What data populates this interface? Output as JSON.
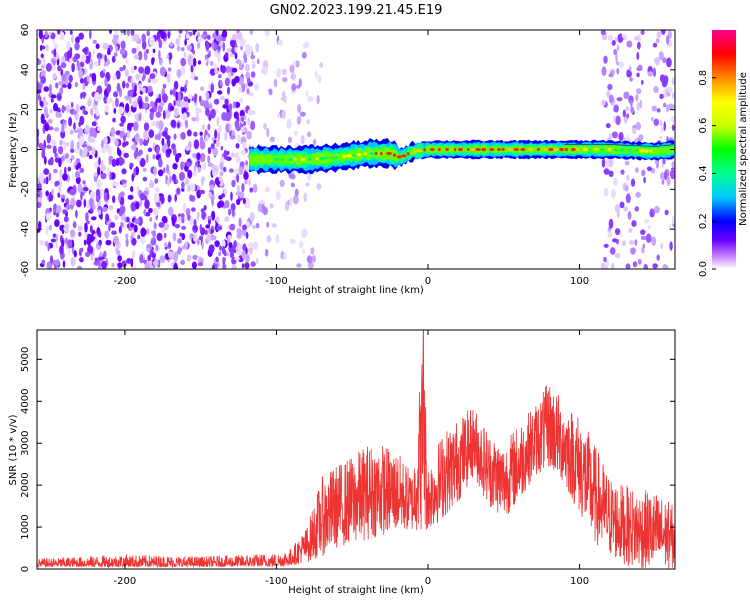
{
  "title": "GN02.2023.199.21.45.E19",
  "chart_data": [
    {
      "type": "heatmap",
      "xlabel": "Height of straight line (km)",
      "ylabel": "Frequency (Hz)",
      "xlim": [
        -258,
        163
      ],
      "ylim": [
        -60,
        60
      ],
      "x_ticks": [
        "-200",
        "-100",
        "0",
        "100"
      ],
      "y_ticks": [
        "60",
        "40",
        "20",
        "0",
        "-20",
        "-40",
        "-60"
      ],
      "colorbar": {
        "label": "Normalized spectral amplitude",
        "range": [
          0,
          1
        ],
        "ticks": [
          "0.0",
          "0.2",
          "0.4",
          "0.6",
          "0.8"
        ],
        "colors": [
          "#ffffff",
          "#cc88ff",
          "#6a00ff",
          "#0000ff",
          "#00c8ff",
          "#00ff90",
          "#00ff00",
          "#ccff00",
          "#ffff00",
          "#ff8800",
          "#ff0000",
          "#ff0090"
        ]
      },
      "noise_regions": [
        {
          "x_from": -258,
          "x_to": -115,
          "density": "dense"
        },
        {
          "x_from": -115,
          "x_to": -70,
          "density": "sparse"
        },
        {
          "x_from": 115,
          "x_to": 163,
          "density": "medium"
        }
      ],
      "signal_band": {
        "x_from": -118,
        "x_to": 163,
        "center_hz": [
          [
            -118,
            -5
          ],
          [
            -100,
            -5
          ],
          [
            -80,
            -5
          ],
          [
            -60,
            -4
          ],
          [
            -40,
            -2
          ],
          [
            -25,
            -2
          ],
          [
            -18,
            -4
          ],
          [
            -10,
            -1
          ],
          [
            0,
            0
          ],
          [
            50,
            0
          ],
          [
            90,
            0
          ],
          [
            120,
            0
          ],
          [
            150,
            -1
          ],
          [
            163,
            0
          ]
        ],
        "peak_amplitude_region": [
          -35,
          100
        ]
      }
    },
    {
      "type": "line",
      "xlabel": "Height of straight line (km)",
      "ylabel": "SNR (10 * v/v)",
      "xlim": [
        -258,
        163
      ],
      "ylim": [
        0,
        5700
      ],
      "x_ticks": [
        "-200",
        "-100",
        "0",
        "100"
      ],
      "y_ticks": [
        "0",
        "1000",
        "2000",
        "3000",
        "4000",
        "5000"
      ],
      "color": "#ee3333",
      "series": [
        {
          "x": [
            -258,
            -200,
            -150,
            -100,
            -90,
            -80,
            -70,
            -60,
            -50,
            -40,
            -30,
            -20,
            -10,
            -3,
            0,
            10,
            20,
            30,
            40,
            50,
            60,
            70,
            80,
            90,
            100,
            110,
            120,
            130,
            140,
            150,
            163
          ],
          "envelope_max": [
            250,
            350,
            300,
            380,
            500,
            1000,
            2200,
            2500,
            2700,
            3000,
            3000,
            2800,
            2300,
            5700,
            2500,
            3300,
            3600,
            3900,
            3300,
            3000,
            3500,
            3900,
            4500,
            4000,
            3700,
            3000,
            2200,
            2000,
            1900,
            1850,
            1500
          ],
          "envelope_min": [
            50,
            50,
            50,
            60,
            80,
            150,
            300,
            500,
            600,
            700,
            800,
            900,
            900,
            900,
            900,
            1200,
            1600,
            2200,
            1500,
            1200,
            1600,
            2200,
            2400,
            2000,
            1300,
            600,
            300,
            100,
            0,
            0,
            0
          ]
        }
      ]
    }
  ]
}
